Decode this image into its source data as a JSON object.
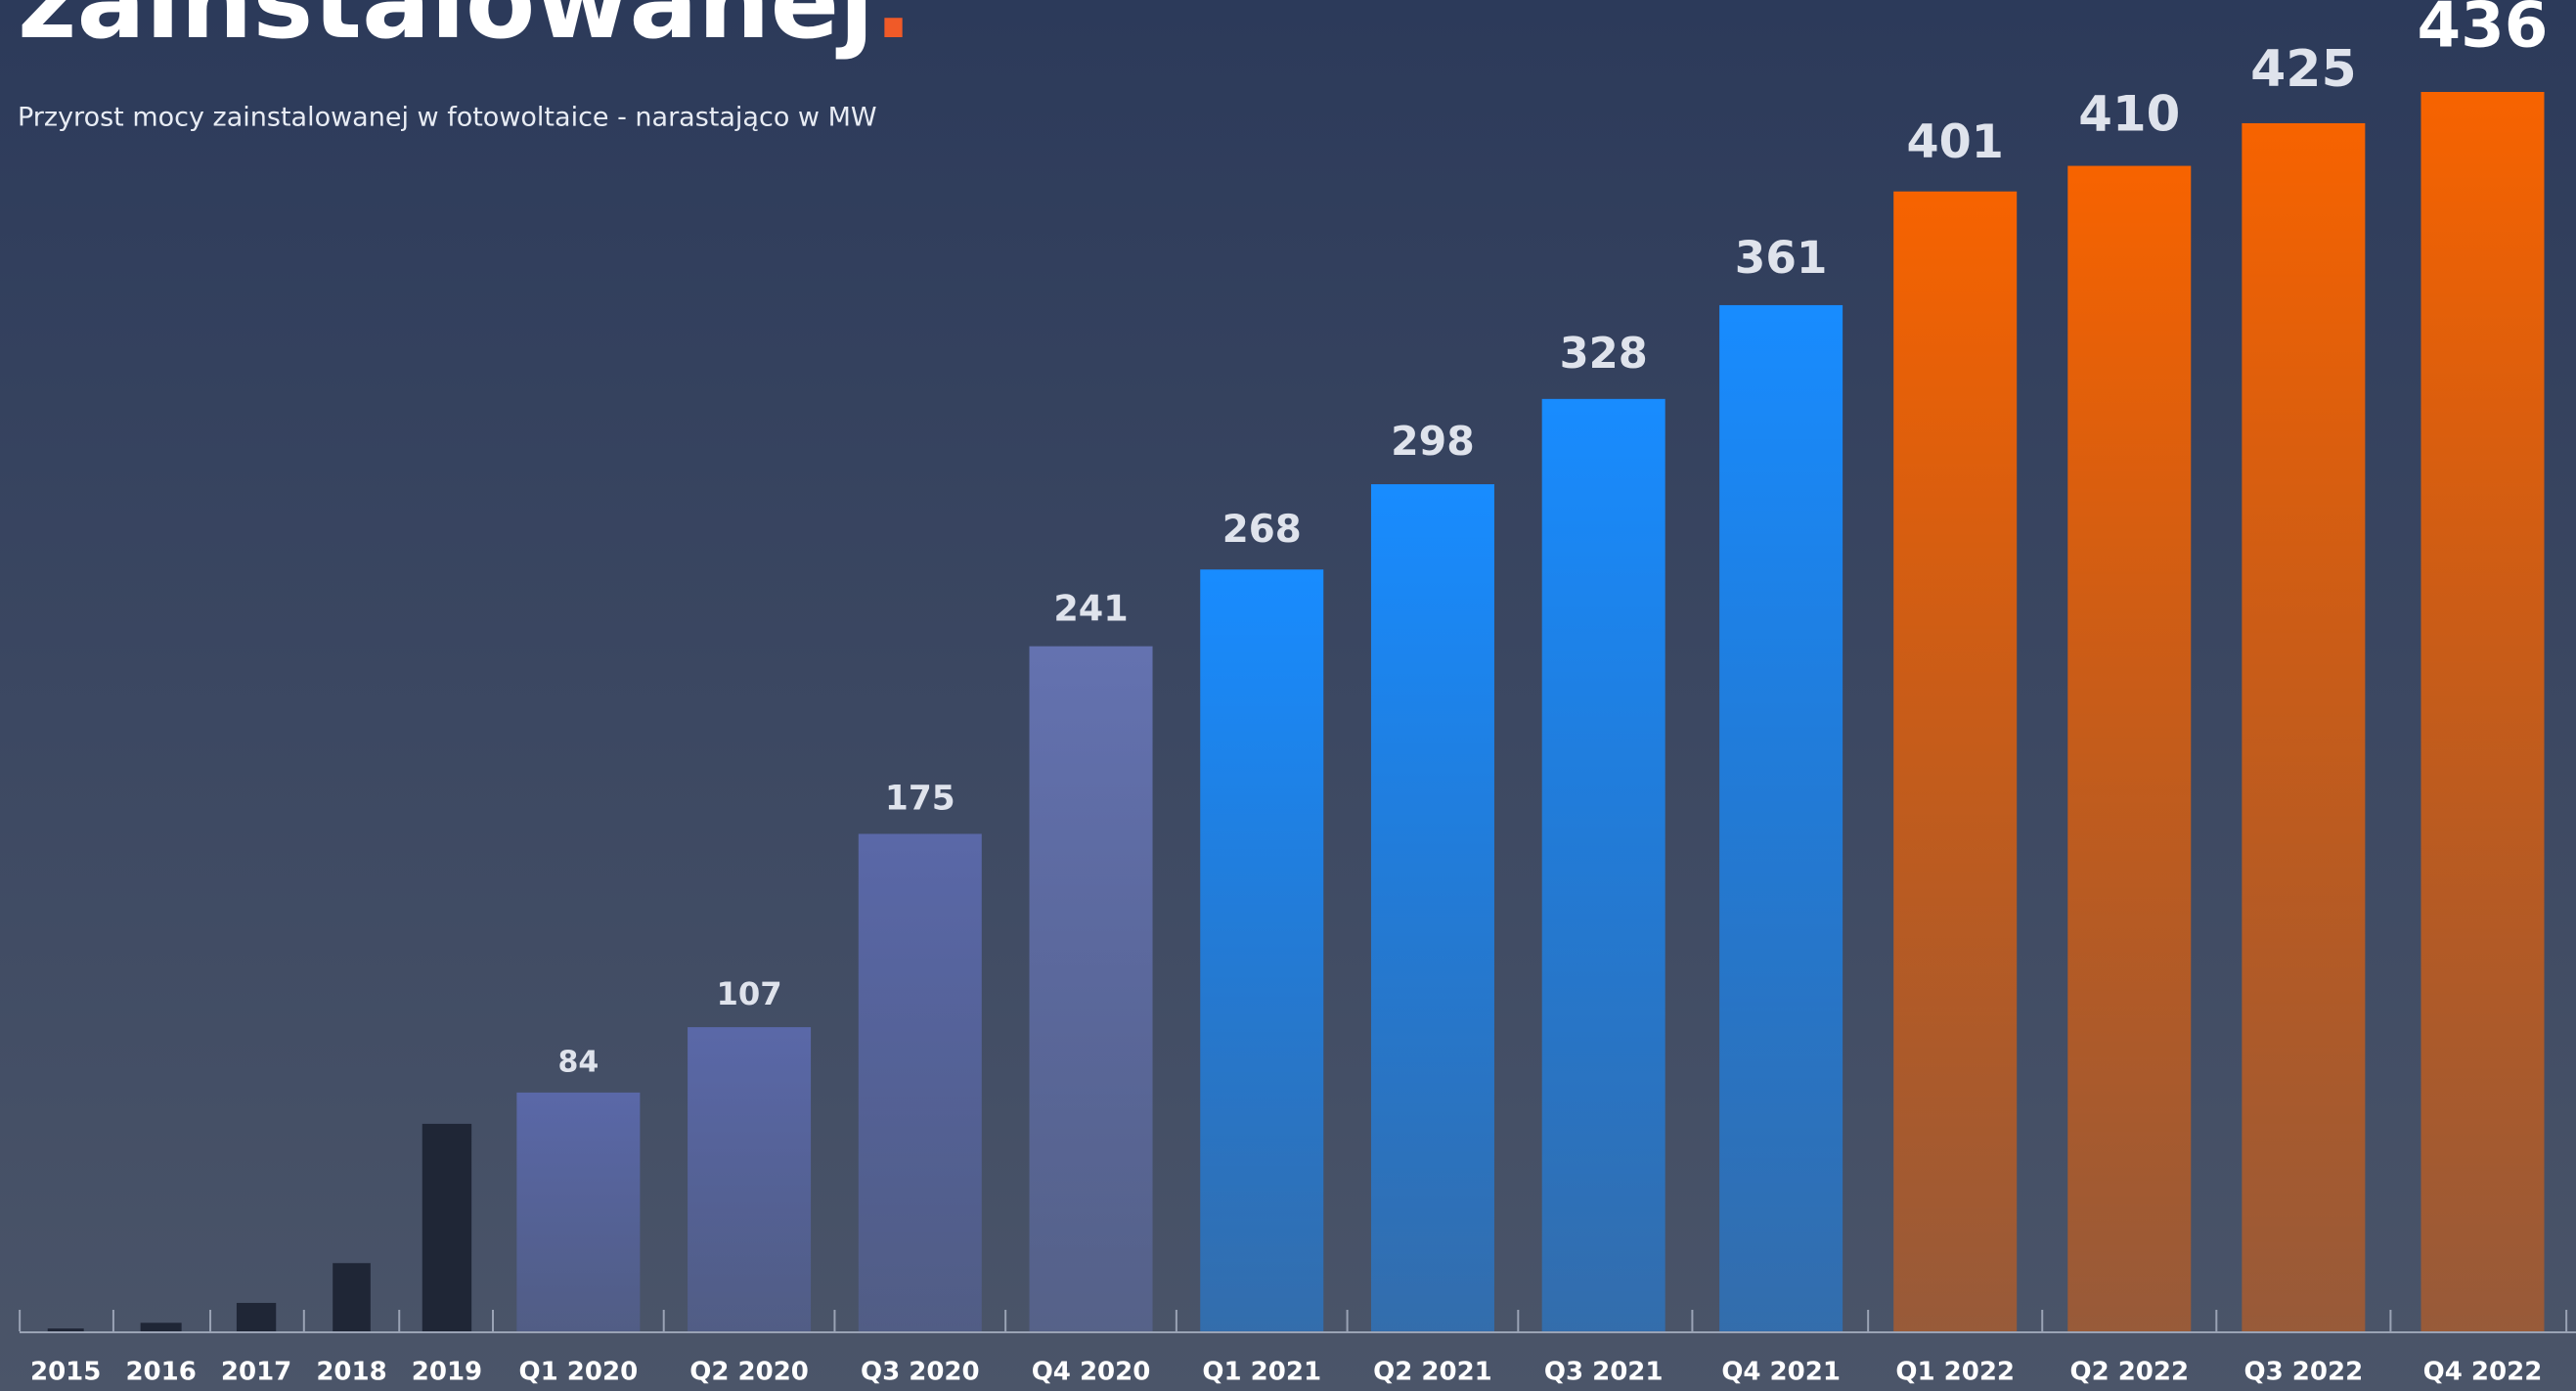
{
  "chart_data": {
    "type": "bar",
    "title": "zainstalowanej",
    "subtitle": "Przyrost mocy zainstalowanej w fotowoltaice - narastająco w MW",
    "categories": [
      "2015",
      "2016",
      "2017",
      "2018",
      "2019",
      "Q1 2020",
      "Q2 2020",
      "Q3 2020",
      "Q4 2020",
      "Q1 2021",
      "Q2 2021",
      "Q3 2021",
      "Q4 2021",
      "Q1 2022",
      "Q2 2022",
      "Q3 2022",
      "Q4 2022"
    ],
    "values": [
      1,
      3,
      10,
      24,
      73,
      84,
      107,
      175,
      241,
      268,
      298,
      328,
      361,
      401,
      410,
      425,
      436
    ],
    "value_labels": [
      null,
      null,
      null,
      null,
      null,
      "84",
      "107",
      "175",
      "241",
      "268",
      "298",
      "328",
      "361",
      "401",
      "410",
      "425",
      "436"
    ],
    "colors": [
      "#1f2636",
      "#1f2636",
      "#1f2636",
      "#1f2636",
      "#1f2636",
      "#5a68a8",
      "#5a68a8",
      "#5a68a8",
      "#6472b0",
      "#188cff",
      "#188cff",
      "#188cff",
      "#188cff",
      "#f76300",
      "#f76300",
      "#f76300",
      "#f76300"
    ],
    "accent": "#f05a28"
  }
}
